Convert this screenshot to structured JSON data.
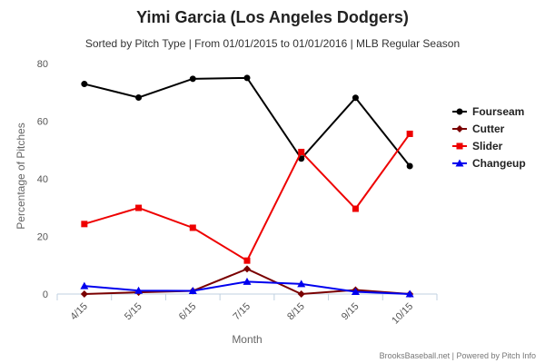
{
  "chart_data": {
    "type": "line",
    "title": "Yimi Garcia (Los Angeles Dodgers)",
    "subtitle": "Sorted by Pitch Type | From 01/01/2015 to 01/01/2016 | MLB Regular Season",
    "xlabel": "Month",
    "ylabel": "Percentage of Pitches",
    "categories": [
      "4/15",
      "5/15",
      "6/15",
      "7/15",
      "8/15",
      "9/15",
      "10/15"
    ],
    "ylim": [
      0,
      80
    ],
    "yticks": [
      0,
      20,
      40,
      60,
      80
    ],
    "grid": false,
    "legend_position": "right",
    "series": [
      {
        "name": "Fourseam",
        "color": "#000000",
        "marker": "circle",
        "values": [
          72.9,
          68.2,
          74.7,
          75.0,
          47.0,
          68.1,
          44.4
        ]
      },
      {
        "name": "Cutter",
        "color": "#7a0000",
        "marker": "diamond",
        "values": [
          0.0,
          0.6,
          1.1,
          8.7,
          0.0,
          1.4,
          0.0
        ]
      },
      {
        "name": "Slider",
        "color": "#ee0000",
        "marker": "square",
        "values": [
          24.3,
          29.9,
          23.0,
          11.6,
          49.3,
          29.6,
          55.6
        ]
      },
      {
        "name": "Changeup",
        "color": "#0000ee",
        "marker": "triangle",
        "values": [
          2.8,
          1.2,
          1.1,
          4.3,
          3.5,
          0.8,
          0.0
        ]
      }
    ]
  },
  "credit": "BrooksBaseball.net | Powered by Pitch Info"
}
